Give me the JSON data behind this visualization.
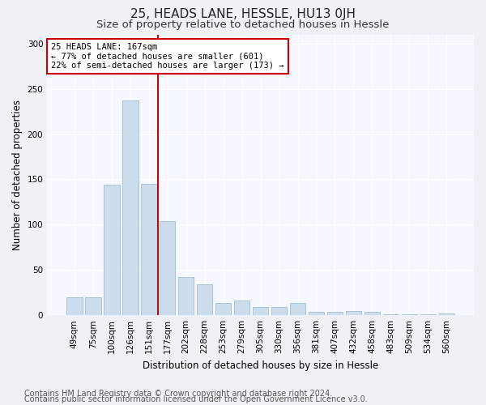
{
  "title": "25, HEADS LANE, HESSLE, HU13 0JH",
  "subtitle": "Size of property relative to detached houses in Hessle",
  "xlabel": "Distribution of detached houses by size in Hessle",
  "ylabel": "Number of detached properties",
  "categories": [
    "49sqm",
    "75sqm",
    "100sqm",
    "126sqm",
    "151sqm",
    "177sqm",
    "202sqm",
    "228sqm",
    "253sqm",
    "279sqm",
    "305sqm",
    "330sqm",
    "356sqm",
    "381sqm",
    "407sqm",
    "432sqm",
    "458sqm",
    "483sqm",
    "509sqm",
    "534sqm",
    "560sqm"
  ],
  "values": [
    20,
    20,
    144,
    237,
    145,
    104,
    42,
    34,
    14,
    16,
    9,
    9,
    14,
    4,
    4,
    5,
    4,
    1,
    1,
    1,
    2
  ],
  "bar_color": "#ccdded",
  "bar_edge_color": "#a0bcd0",
  "red_line_index": 5,
  "red_line_color": "#cc0000",
  "annotation_text": "25 HEADS LANE: 167sqm\n← 77% of detached houses are smaller (601)\n22% of semi-detached houses are larger (173) →",
  "annotation_box_color": "white",
  "annotation_box_edge": "#cc0000",
  "ylim": [
    0,
    310
  ],
  "yticks": [
    0,
    50,
    100,
    150,
    200,
    250,
    300
  ],
  "footer_line1": "Contains HM Land Registry data © Crown copyright and database right 2024.",
  "footer_line2": "Contains public sector information licensed under the Open Government Licence v3.0.",
  "bg_color": "#eef2f7",
  "plot_bg_color": "#f5f8ff",
  "title_fontsize": 11,
  "subtitle_fontsize": 9.5,
  "label_fontsize": 8.5,
  "tick_fontsize": 7.5,
  "footer_fontsize": 7,
  "ann_fontsize": 7.5
}
